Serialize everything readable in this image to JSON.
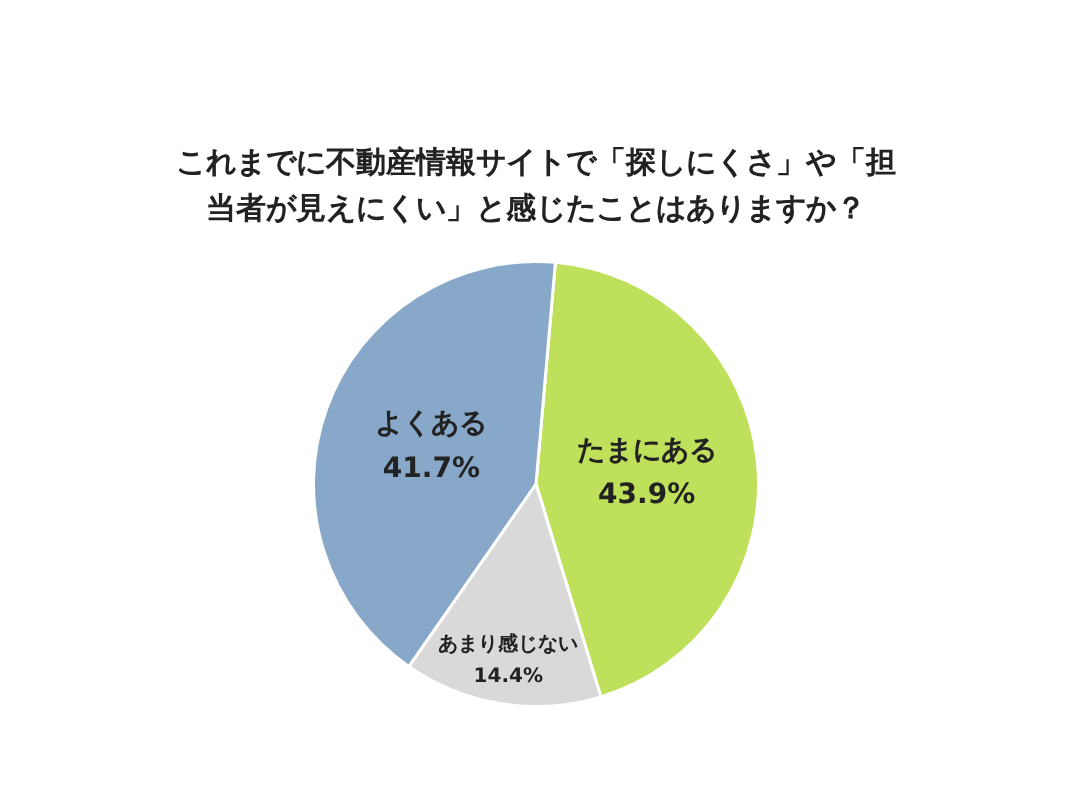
{
  "chart_data": {
    "type": "pie",
    "title": "これまでに不動産情報サイトで「探しにくさ」や「担当者が見えにくい」と感じたことはありますか？",
    "categories": [
      "たまにある",
      "あまり感じない",
      "よくある"
    ],
    "values": [
      43.9,
      14.4,
      41.7
    ],
    "colors": [
      "#bfe05a",
      "#d9d9d9",
      "#87a8c8"
    ],
    "value_labels": [
      "43.9%",
      "14.4%",
      "41.7%"
    ],
    "legend": false
  }
}
